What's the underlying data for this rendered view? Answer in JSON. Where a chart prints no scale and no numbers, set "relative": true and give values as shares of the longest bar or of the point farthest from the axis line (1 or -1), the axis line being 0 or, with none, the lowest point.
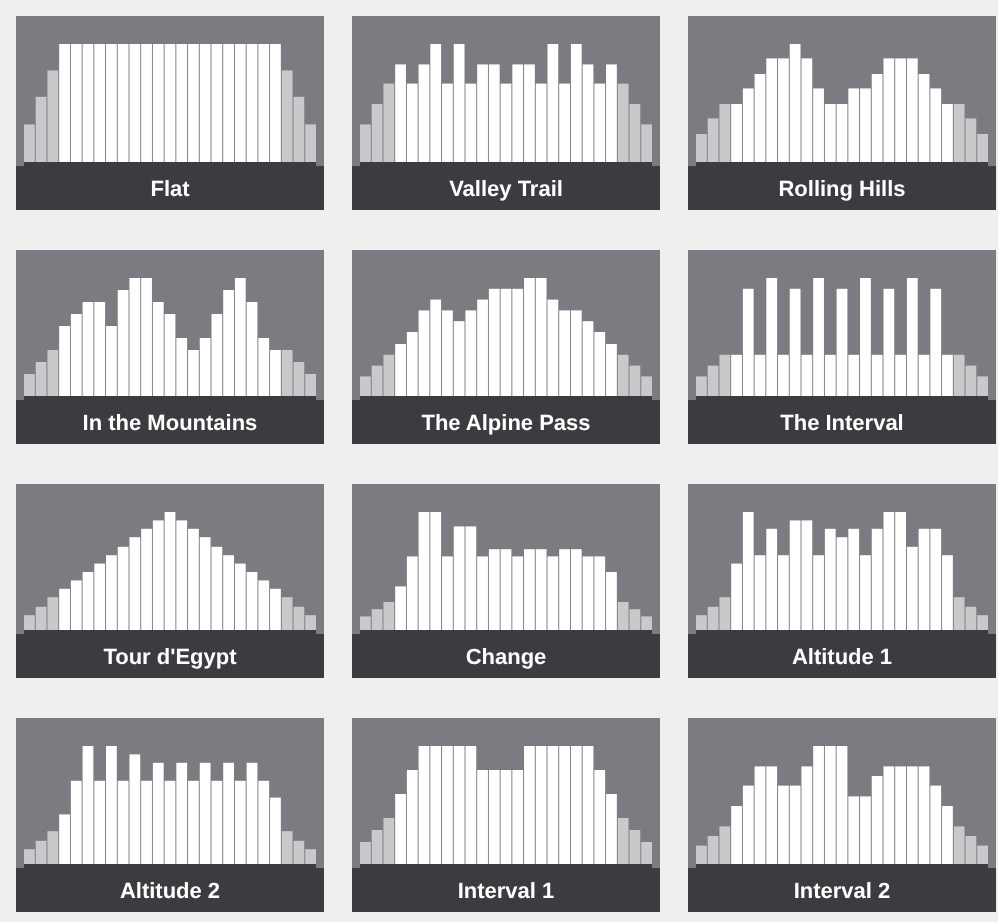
{
  "chart_data": [
    {
      "type": "bar",
      "title": "Flat",
      "relative": true,
      "categories": [
        null,
        null,
        null,
        null,
        null,
        null,
        null,
        null,
        null,
        null,
        null,
        null,
        null,
        null,
        null,
        null,
        null,
        null,
        null,
        null,
        null,
        null,
        null,
        null,
        null
      ],
      "values": [
        0.33,
        0.56,
        0.78,
        1,
        1,
        1,
        1,
        1,
        1,
        1,
        1,
        1,
        1,
        1,
        1,
        1,
        1,
        1,
        1,
        1,
        1,
        1,
        0.78,
        0.56,
        0.33
      ],
      "colors": [
        "#c8c9cb",
        "#c8c9cb",
        "#c8c9cb",
        "#ffffff",
        "#ffffff",
        "#ffffff",
        "#ffffff",
        "#ffffff",
        "#ffffff",
        "#ffffff",
        "#ffffff",
        "#ffffff",
        "#ffffff",
        "#ffffff",
        "#ffffff",
        "#ffffff",
        "#ffffff",
        "#ffffff",
        "#ffffff",
        "#ffffff",
        "#ffffff",
        "#ffffff",
        "#c8c9cb",
        "#c8c9cb",
        "#c8c9cb"
      ]
    },
    {
      "type": "bar",
      "title": "Valley Trail",
      "relative": true,
      "categories": [
        null,
        null,
        null,
        null,
        null,
        null,
        null,
        null,
        null,
        null,
        null,
        null,
        null,
        null,
        null,
        null,
        null,
        null,
        null,
        null,
        null,
        null,
        null,
        null,
        null
      ],
      "values": [
        0.33,
        0.5,
        0.67,
        0.83,
        0.67,
        0.83,
        1,
        0.67,
        1,
        0.67,
        0.83,
        0.83,
        0.67,
        0.83,
        0.83,
        0.67,
        1,
        0.67,
        1,
        0.83,
        0.67,
        0.83,
        0.67,
        0.5,
        0.33
      ],
      "colors": [
        "#c8c9cb",
        "#c8c9cb",
        "#c8c9cb",
        "#ffffff",
        "#ffffff",
        "#ffffff",
        "#ffffff",
        "#ffffff",
        "#ffffff",
        "#ffffff",
        "#ffffff",
        "#ffffff",
        "#ffffff",
        "#ffffff",
        "#ffffff",
        "#ffffff",
        "#ffffff",
        "#ffffff",
        "#ffffff",
        "#ffffff",
        "#ffffff",
        "#ffffff",
        "#c8c9cb",
        "#c8c9cb",
        "#c8c9cb"
      ]
    },
    {
      "type": "bar",
      "title": "Rolling Hills",
      "relative": true,
      "categories": [
        null,
        null,
        null,
        null,
        null,
        null,
        null,
        null,
        null,
        null,
        null,
        null,
        null,
        null,
        null,
        null,
        null,
        null,
        null,
        null,
        null,
        null,
        null,
        null,
        null
      ],
      "values": [
        0.25,
        0.38,
        0.5,
        0.5,
        0.63,
        0.75,
        0.88,
        0.88,
        1,
        0.88,
        0.63,
        0.5,
        0.5,
        0.63,
        0.63,
        0.75,
        0.88,
        0.88,
        0.88,
        0.75,
        0.63,
        0.5,
        0.5,
        0.38,
        0.25
      ],
      "colors": [
        "#c8c9cb",
        "#c8c9cb",
        "#c8c9cb",
        "#ffffff",
        "#ffffff",
        "#ffffff",
        "#ffffff",
        "#ffffff",
        "#ffffff",
        "#ffffff",
        "#ffffff",
        "#ffffff",
        "#ffffff",
        "#ffffff",
        "#ffffff",
        "#ffffff",
        "#ffffff",
        "#ffffff",
        "#ffffff",
        "#ffffff",
        "#ffffff",
        "#ffffff",
        "#c8c9cb",
        "#c8c9cb",
        "#c8c9cb"
      ]
    },
    {
      "type": "bar",
      "title": "In the Mountains",
      "relative": true,
      "categories": [
        null,
        null,
        null,
        null,
        null,
        null,
        null,
        null,
        null,
        null,
        null,
        null,
        null,
        null,
        null,
        null,
        null,
        null,
        null,
        null,
        null,
        null,
        null,
        null,
        null
      ],
      "values": [
        0.2,
        0.3,
        0.4,
        0.6,
        0.7,
        0.8,
        0.8,
        0.6,
        0.9,
        1,
        1,
        0.8,
        0.7,
        0.5,
        0.4,
        0.5,
        0.7,
        0.9,
        1,
        0.8,
        0.5,
        0.4,
        0.4,
        0.3,
        0.2
      ],
      "colors": [
        "#c8c9cb",
        "#c8c9cb",
        "#c8c9cb",
        "#ffffff",
        "#ffffff",
        "#ffffff",
        "#ffffff",
        "#ffffff",
        "#ffffff",
        "#ffffff",
        "#ffffff",
        "#ffffff",
        "#ffffff",
        "#ffffff",
        "#ffffff",
        "#ffffff",
        "#ffffff",
        "#ffffff",
        "#ffffff",
        "#ffffff",
        "#ffffff",
        "#ffffff",
        "#c8c9cb",
        "#c8c9cb",
        "#c8c9cb"
      ]
    },
    {
      "type": "bar",
      "title": "The Alpine Pass",
      "relative": true,
      "categories": [
        null,
        null,
        null,
        null,
        null,
        null,
        null,
        null,
        null,
        null,
        null,
        null,
        null,
        null,
        null,
        null,
        null,
        null,
        null,
        null,
        null,
        null,
        null,
        null,
        null
      ],
      "values": [
        0.18,
        0.27,
        0.36,
        0.45,
        0.55,
        0.73,
        0.82,
        0.73,
        0.64,
        0.73,
        0.82,
        0.91,
        0.91,
        0.91,
        1,
        1,
        0.82,
        0.73,
        0.73,
        0.64,
        0.55,
        0.45,
        0.36,
        0.27,
        0.18
      ],
      "colors": [
        "#c8c9cb",
        "#c8c9cb",
        "#c8c9cb",
        "#ffffff",
        "#ffffff",
        "#ffffff",
        "#ffffff",
        "#ffffff",
        "#ffffff",
        "#ffffff",
        "#ffffff",
        "#ffffff",
        "#ffffff",
        "#ffffff",
        "#ffffff",
        "#ffffff",
        "#ffffff",
        "#ffffff",
        "#ffffff",
        "#ffffff",
        "#ffffff",
        "#ffffff",
        "#c8c9cb",
        "#c8c9cb",
        "#c8c9cb"
      ]
    },
    {
      "type": "bar",
      "title": "The Interval",
      "relative": true,
      "categories": [
        null,
        null,
        null,
        null,
        null,
        null,
        null,
        null,
        null,
        null,
        null,
        null,
        null,
        null,
        null,
        null,
        null,
        null,
        null,
        null,
        null,
        null,
        null,
        null,
        null
      ],
      "values": [
        0.18,
        0.27,
        0.36,
        0.36,
        0.91,
        0.36,
        1,
        0.36,
        0.91,
        0.36,
        1,
        0.36,
        0.91,
        0.36,
        1,
        0.36,
        0.91,
        0.36,
        1,
        0.36,
        0.91,
        0.36,
        0.36,
        0.27,
        0.18
      ],
      "colors": [
        "#c8c9cb",
        "#c8c9cb",
        "#c8c9cb",
        "#ffffff",
        "#ffffff",
        "#ffffff",
        "#ffffff",
        "#ffffff",
        "#ffffff",
        "#ffffff",
        "#ffffff",
        "#ffffff",
        "#ffffff",
        "#ffffff",
        "#ffffff",
        "#ffffff",
        "#ffffff",
        "#ffffff",
        "#ffffff",
        "#ffffff",
        "#ffffff",
        "#ffffff",
        "#c8c9cb",
        "#c8c9cb",
        "#c8c9cb"
      ]
    },
    {
      "type": "bar",
      "title": "Tour d'Egypt",
      "relative": true,
      "categories": [
        null,
        null,
        null,
        null,
        null,
        null,
        null,
        null,
        null,
        null,
        null,
        null,
        null,
        null,
        null,
        null,
        null,
        null,
        null,
        null,
        null,
        null,
        null,
        null,
        null
      ],
      "values": [
        0.14,
        0.21,
        0.29,
        0.36,
        0.43,
        0.5,
        0.57,
        0.64,
        0.71,
        0.79,
        0.86,
        0.93,
        1,
        0.93,
        0.86,
        0.79,
        0.71,
        0.64,
        0.57,
        0.5,
        0.43,
        0.36,
        0.29,
        0.21,
        0.14
      ],
      "colors": [
        "#c8c9cb",
        "#c8c9cb",
        "#c8c9cb",
        "#ffffff",
        "#ffffff",
        "#ffffff",
        "#ffffff",
        "#ffffff",
        "#ffffff",
        "#ffffff",
        "#ffffff",
        "#ffffff",
        "#ffffff",
        "#ffffff",
        "#ffffff",
        "#ffffff",
        "#ffffff",
        "#ffffff",
        "#ffffff",
        "#ffffff",
        "#ffffff",
        "#ffffff",
        "#c8c9cb",
        "#c8c9cb",
        "#c8c9cb"
      ]
    },
    {
      "type": "bar",
      "title": "Change",
      "relative": true,
      "categories": [
        null,
        null,
        null,
        null,
        null,
        null,
        null,
        null,
        null,
        null,
        null,
        null,
        null,
        null,
        null,
        null,
        null,
        null,
        null,
        null,
        null,
        null,
        null,
        null,
        null
      ],
      "values": [
        0.13,
        0.19,
        0.25,
        0.38,
        0.63,
        1,
        1,
        0.63,
        0.88,
        0.88,
        0.63,
        0.69,
        0.69,
        0.63,
        0.69,
        0.69,
        0.63,
        0.69,
        0.69,
        0.63,
        0.63,
        0.5,
        0.25,
        0.19,
        0.13
      ],
      "colors": [
        "#c8c9cb",
        "#c8c9cb",
        "#c8c9cb",
        "#ffffff",
        "#ffffff",
        "#ffffff",
        "#ffffff",
        "#ffffff",
        "#ffffff",
        "#ffffff",
        "#ffffff",
        "#ffffff",
        "#ffffff",
        "#ffffff",
        "#ffffff",
        "#ffffff",
        "#ffffff",
        "#ffffff",
        "#ffffff",
        "#ffffff",
        "#ffffff",
        "#ffffff",
        "#c8c9cb",
        "#c8c9cb",
        "#c8c9cb"
      ]
    },
    {
      "type": "bar",
      "title": "Altitude 1",
      "relative": true,
      "categories": [
        null,
        null,
        null,
        null,
        null,
        null,
        null,
        null,
        null,
        null,
        null,
        null,
        null,
        null,
        null,
        null,
        null,
        null,
        null,
        null,
        null,
        null,
        null,
        null,
        null
      ],
      "values": [
        0.14,
        0.21,
        0.29,
        0.57,
        1,
        0.64,
        0.86,
        0.64,
        0.93,
        0.93,
        0.64,
        0.86,
        0.79,
        0.86,
        0.64,
        0.86,
        1,
        1,
        0.71,
        0.86,
        0.86,
        0.64,
        0.29,
        0.21,
        0.14
      ],
      "colors": [
        "#c8c9cb",
        "#c8c9cb",
        "#c8c9cb",
        "#ffffff",
        "#ffffff",
        "#ffffff",
        "#ffffff",
        "#ffffff",
        "#ffffff",
        "#ffffff",
        "#ffffff",
        "#ffffff",
        "#ffffff",
        "#ffffff",
        "#ffffff",
        "#ffffff",
        "#ffffff",
        "#ffffff",
        "#ffffff",
        "#ffffff",
        "#ffffff",
        "#ffffff",
        "#c8c9cb",
        "#c8c9cb",
        "#c8c9cb"
      ]
    },
    {
      "type": "bar",
      "title": "Altitude 2",
      "relative": true,
      "categories": [
        null,
        null,
        null,
        null,
        null,
        null,
        null,
        null,
        null,
        null,
        null,
        null,
        null,
        null,
        null,
        null,
        null,
        null,
        null,
        null,
        null,
        null,
        null,
        null,
        null
      ],
      "values": [
        0.14,
        0.21,
        0.29,
        0.43,
        0.71,
        1,
        0.71,
        1,
        0.71,
        0.93,
        0.71,
        0.86,
        0.71,
        0.86,
        0.71,
        0.86,
        0.71,
        0.86,
        0.71,
        0.86,
        0.71,
        0.57,
        0.29,
        0.21,
        0.14
      ],
      "colors": [
        "#c8c9cb",
        "#c8c9cb",
        "#c8c9cb",
        "#ffffff",
        "#ffffff",
        "#ffffff",
        "#ffffff",
        "#ffffff",
        "#ffffff",
        "#ffffff",
        "#ffffff",
        "#ffffff",
        "#ffffff",
        "#ffffff",
        "#ffffff",
        "#ffffff",
        "#ffffff",
        "#ffffff",
        "#ffffff",
        "#ffffff",
        "#ffffff",
        "#ffffff",
        "#c8c9cb",
        "#c8c9cb",
        "#c8c9cb"
      ]
    },
    {
      "type": "bar",
      "title": "Interval 1",
      "relative": true,
      "categories": [
        null,
        null,
        null,
        null,
        null,
        null,
        null,
        null,
        null,
        null,
        null,
        null,
        null,
        null,
        null,
        null,
        null,
        null,
        null,
        null,
        null,
        null,
        null,
        null,
        null
      ],
      "values": [
        0.2,
        0.3,
        0.4,
        0.6,
        0.8,
        1,
        1,
        1,
        1,
        1,
        0.8,
        0.8,
        0.8,
        0.8,
        1,
        1,
        1,
        1,
        1,
        1,
        0.8,
        0.6,
        0.4,
        0.3,
        0.2
      ],
      "colors": [
        "#c8c9cb",
        "#c8c9cb",
        "#c8c9cb",
        "#ffffff",
        "#ffffff",
        "#ffffff",
        "#ffffff",
        "#ffffff",
        "#ffffff",
        "#ffffff",
        "#ffffff",
        "#ffffff",
        "#ffffff",
        "#ffffff",
        "#ffffff",
        "#ffffff",
        "#ffffff",
        "#ffffff",
        "#ffffff",
        "#ffffff",
        "#ffffff",
        "#ffffff",
        "#c8c9cb",
        "#c8c9cb",
        "#c8c9cb"
      ]
    },
    {
      "type": "bar",
      "title": "Interval 2",
      "relative": true,
      "categories": [
        null,
        null,
        null,
        null,
        null,
        null,
        null,
        null,
        null,
        null,
        null,
        null,
        null,
        null,
        null,
        null,
        null,
        null,
        null,
        null,
        null,
        null,
        null,
        null,
        null
      ],
      "values": [
        0.17,
        0.25,
        0.33,
        0.5,
        0.67,
        0.83,
        0.83,
        0.67,
        0.67,
        0.83,
        1,
        1,
        1,
        0.58,
        0.58,
        0.75,
        0.83,
        0.83,
        0.83,
        0.83,
        0.67,
        0.5,
        0.33,
        0.25,
        0.17
      ],
      "colors": [
        "#c8c9cb",
        "#c8c9cb",
        "#c8c9cb",
        "#ffffff",
        "#ffffff",
        "#ffffff",
        "#ffffff",
        "#ffffff",
        "#ffffff",
        "#ffffff",
        "#ffffff",
        "#ffffff",
        "#ffffff",
        "#ffffff",
        "#ffffff",
        "#ffffff",
        "#ffffff",
        "#ffffff",
        "#ffffff",
        "#ffffff",
        "#ffffff",
        "#ffffff",
        "#c8c9cb",
        "#c8c9cb",
        "#c8c9cb"
      ]
    }
  ]
}
